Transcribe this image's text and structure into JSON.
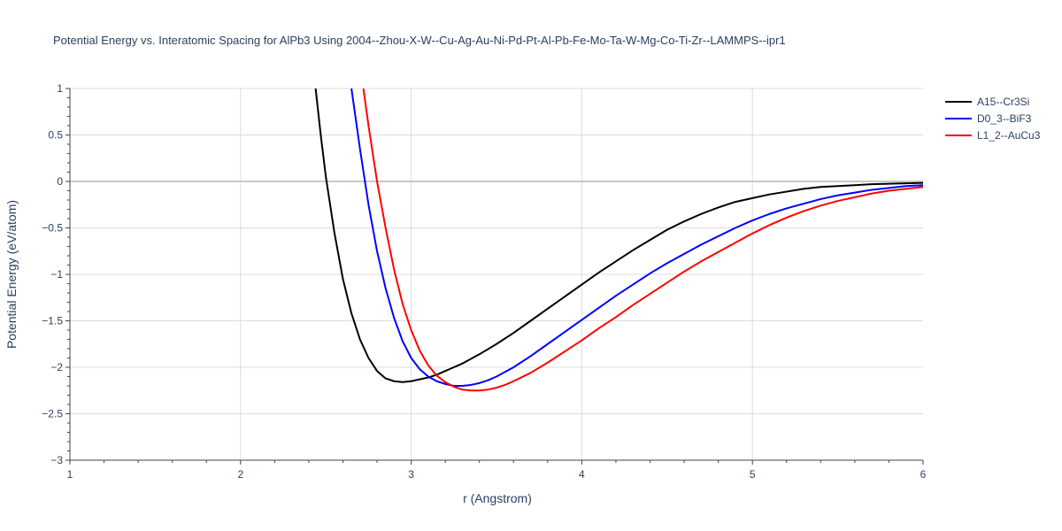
{
  "chart_data": {
    "type": "line",
    "title": "Potential Energy vs. Interatomic Spacing for AlPb3 Using 2004--Zhou-X-W--Cu-Ag-Au-Ni-Pd-Pt-Al-Pb-Fe-Mo-Ta-W-Mg-Co-Ti-Zr--LAMMPS--ipr1",
    "xlabel": "r (Angstrom)",
    "ylabel": "Potential Energy (eV/atom)",
    "xlim": [
      1,
      6
    ],
    "ylim": [
      -3,
      1
    ],
    "xticks": [
      1,
      2,
      3,
      4,
      5,
      6
    ],
    "xtick_labels": [
      "1",
      "2",
      "3",
      "4",
      "5",
      "6"
    ],
    "yticks": [
      1,
      0.5,
      0,
      -0.5,
      -1,
      -1.5,
      -2,
      -2.5,
      -3
    ],
    "ytick_labels": [
      "1",
      "0.5",
      "0",
      "−0.5",
      "−1",
      "−1.5",
      "−2",
      "−2.5",
      "−3"
    ],
    "grid": true,
    "legend_position": "top-right",
    "series": [
      {
        "name": "A15--Cr3Si",
        "color": "#000000",
        "x": [
          2.44,
          2.47,
          2.5,
          2.55,
          2.6,
          2.65,
          2.7,
          2.75,
          2.8,
          2.85,
          2.9,
          2.95,
          3.0,
          3.05,
          3.1,
          3.15,
          3.2,
          3.3,
          3.4,
          3.5,
          3.6,
          3.7,
          3.8,
          3.9,
          4.0,
          4.1,
          4.2,
          4.3,
          4.4,
          4.5,
          4.6,
          4.7,
          4.8,
          4.9,
          5.0,
          5.1,
          5.2,
          5.3,
          5.4,
          5.5,
          5.6,
          5.7,
          5.8,
          5.9,
          6.0
        ],
        "y": [
          1.0,
          0.5,
          0.05,
          -0.55,
          -1.05,
          -1.42,
          -1.7,
          -1.9,
          -2.04,
          -2.12,
          -2.15,
          -2.16,
          -2.15,
          -2.13,
          -2.11,
          -2.08,
          -2.04,
          -1.96,
          -1.86,
          -1.75,
          -1.63,
          -1.5,
          -1.37,
          -1.24,
          -1.11,
          -0.98,
          -0.86,
          -0.74,
          -0.63,
          -0.52,
          -0.43,
          -0.35,
          -0.28,
          -0.22,
          -0.18,
          -0.14,
          -0.11,
          -0.08,
          -0.06,
          -0.05,
          -0.04,
          -0.03,
          -0.025,
          -0.02,
          -0.015
        ]
      },
      {
        "name": "D0_3--BiF3",
        "color": "#0000ff",
        "x": [
          2.65,
          2.7,
          2.75,
          2.8,
          2.85,
          2.9,
          2.95,
          3.0,
          3.05,
          3.1,
          3.15,
          3.2,
          3.25,
          3.3,
          3.35,
          3.4,
          3.45,
          3.5,
          3.6,
          3.7,
          3.8,
          3.9,
          4.0,
          4.1,
          4.2,
          4.3,
          4.4,
          4.5,
          4.6,
          4.7,
          4.8,
          4.9,
          5.0,
          5.1,
          5.2,
          5.3,
          5.4,
          5.5,
          5.6,
          5.7,
          5.8,
          5.9,
          6.0
        ],
        "y": [
          1.0,
          0.35,
          -0.25,
          -0.75,
          -1.15,
          -1.47,
          -1.72,
          -1.9,
          -2.02,
          -2.1,
          -2.15,
          -2.18,
          -2.2,
          -2.2,
          -2.19,
          -2.17,
          -2.14,
          -2.1,
          -2.0,
          -1.88,
          -1.75,
          -1.62,
          -1.49,
          -1.36,
          -1.23,
          -1.11,
          -0.99,
          -0.88,
          -0.78,
          -0.68,
          -0.59,
          -0.5,
          -0.42,
          -0.35,
          -0.29,
          -0.24,
          -0.19,
          -0.15,
          -0.12,
          -0.09,
          -0.07,
          -0.05,
          -0.04
        ]
      },
      {
        "name": "L1_2--AuCu3",
        "color": "#ff0000",
        "x": [
          2.72,
          2.75,
          2.8,
          2.85,
          2.9,
          2.95,
          3.0,
          3.05,
          3.1,
          3.15,
          3.2,
          3.25,
          3.3,
          3.35,
          3.4,
          3.45,
          3.5,
          3.55,
          3.6,
          3.7,
          3.8,
          3.9,
          4.0,
          4.1,
          4.2,
          4.3,
          4.4,
          4.5,
          4.6,
          4.7,
          4.8,
          4.9,
          5.0,
          5.1,
          5.2,
          5.3,
          5.4,
          5.5,
          5.6,
          5.7,
          5.8,
          5.9,
          6.0
        ],
        "y": [
          1.0,
          0.6,
          0.0,
          -0.5,
          -0.95,
          -1.32,
          -1.6,
          -1.82,
          -1.98,
          -2.09,
          -2.16,
          -2.21,
          -2.24,
          -2.25,
          -2.25,
          -2.24,
          -2.22,
          -2.19,
          -2.15,
          -2.06,
          -1.95,
          -1.83,
          -1.71,
          -1.58,
          -1.46,
          -1.33,
          -1.21,
          -1.09,
          -0.97,
          -0.86,
          -0.76,
          -0.66,
          -0.56,
          -0.47,
          -0.39,
          -0.32,
          -0.26,
          -0.21,
          -0.17,
          -0.13,
          -0.1,
          -0.08,
          -0.06
        ]
      }
    ]
  }
}
